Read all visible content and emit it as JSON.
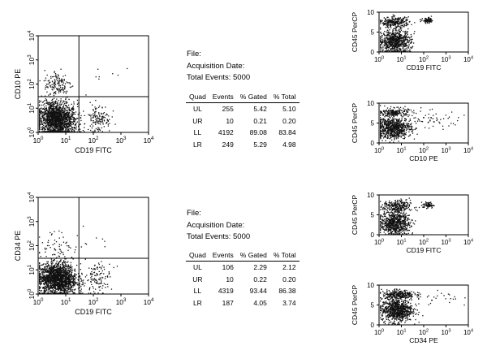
{
  "chart_data": [
    {
      "type": "scatter",
      "xlabel": "CD19 FITC",
      "ylabel": "CD10 PE",
      "xlim": [
        1,
        10000
      ],
      "ylim": [
        1,
        10000
      ],
      "xscale": "log",
      "yscale": "log",
      "quadrant_gates": {
        "x": 30,
        "y": 30
      },
      "ticks": [
        "10^0",
        "10^1",
        "10^2",
        "10^3",
        "10^4"
      ],
      "clusters": [
        {
          "label": "LL",
          "center": [
            5,
            3
          ],
          "spread": [
            0.35,
            0.35
          ],
          "points": 1300
        },
        {
          "label": "LL",
          "center": [
            3,
            6
          ],
          "spread": [
            0.25,
            0.3
          ],
          "points": 350
        },
        {
          "label": "UL",
          "center": [
            5,
            100
          ],
          "spread": [
            0.25,
            0.3
          ],
          "points": 150
        },
        {
          "label": "LR",
          "center": [
            150,
            4
          ],
          "spread": [
            0.22,
            0.3
          ],
          "points": 130
        },
        {
          "label": "UR",
          "center": [
            200,
            200
          ],
          "spread": [
            0.7,
            0.7
          ],
          "points": 8
        }
      ]
    },
    {
      "type": "scatter",
      "xlabel": "CD19 FITC",
      "ylabel": "CD34 PE",
      "xlim": [
        1,
        10000
      ],
      "ylim": [
        1,
        10000
      ],
      "xscale": "log",
      "yscale": "log",
      "quadrant_gates": {
        "x": 30,
        "y": 30
      },
      "ticks": [
        "10^0",
        "10^1",
        "10^2",
        "10^3",
        "10^4"
      ],
      "clusters": [
        {
          "label": "LL",
          "center": [
            5,
            4
          ],
          "spread": [
            0.35,
            0.32
          ],
          "points": 1400
        },
        {
          "label": "LL",
          "center": [
            4,
            7
          ],
          "spread": [
            0.28,
            0.25
          ],
          "points": 300
        },
        {
          "label": "UL",
          "center": [
            6,
            90
          ],
          "spread": [
            0.4,
            0.35
          ],
          "points": 70
        },
        {
          "label": "LR",
          "center": [
            150,
            5
          ],
          "spread": [
            0.22,
            0.3
          ],
          "points": 110
        },
        {
          "label": "UR",
          "center": [
            150,
            150
          ],
          "spread": [
            0.6,
            0.6
          ],
          "points": 8
        }
      ]
    },
    {
      "type": "scatter",
      "xlabel": "CD19 FITC",
      "ylabel": "CD45 PerCP",
      "xlim": [
        1,
        10000
      ],
      "ylim": [
        1,
        10
      ],
      "xscale": "log",
      "x_ticks": [
        "10^0",
        "10^1",
        "10^2",
        "10^3",
        "10^4"
      ],
      "y_ticks": [
        "0",
        "5",
        "10"
      ],
      "clusters": [
        {
          "center": [
            5,
            3.5
          ],
          "spread": [
            0.35,
            1.3
          ],
          "points": 700
        },
        {
          "center": [
            5,
            7.8
          ],
          "spread": [
            0.32,
            0.6
          ],
          "points": 250
        },
        {
          "center": [
            150,
            8.2
          ],
          "spread": [
            0.12,
            0.3
          ],
          "points": 80
        }
      ]
    },
    {
      "type": "scatter",
      "xlabel": "CD10 PE",
      "ylabel": "CD45 PerCP",
      "xlim": [
        1,
        10000
      ],
      "ylim": [
        1,
        10
      ],
      "xscale": "log",
      "x_ticks": [
        "10^0",
        "10^1",
        "10^2",
        "10^3",
        "10^4"
      ],
      "y_ticks": [
        "0",
        "5",
        "10"
      ],
      "clusters": [
        {
          "center": [
            4,
            4.5
          ],
          "spread": [
            0.4,
            1.2
          ],
          "points": 750
        },
        {
          "center": [
            5,
            8.0
          ],
          "spread": [
            0.3,
            0.5
          ],
          "points": 200
        },
        {
          "center": [
            150,
            6.5
          ],
          "spread": [
            0.8,
            1.0
          ],
          "points": 60
        }
      ]
    },
    {
      "type": "scatter",
      "xlabel": "CD19 FITC",
      "ylabel": "CD45 PerCP",
      "xlim": [
        1,
        10000
      ],
      "ylim": [
        1,
        10
      ],
      "xscale": "log",
      "x_ticks": [
        "10^0",
        "10^1",
        "10^2",
        "10^3",
        "10^4"
      ],
      "y_ticks": [
        "0",
        "5",
        "10"
      ],
      "clusters": [
        {
          "center": [
            5,
            3.8
          ],
          "spread": [
            0.33,
            1.3
          ],
          "points": 700
        },
        {
          "center": [
            6,
            7.5
          ],
          "spread": [
            0.3,
            0.7
          ],
          "points": 250
        },
        {
          "center": [
            150,
            7.8
          ],
          "spread": [
            0.12,
            0.35
          ],
          "points": 70
        }
      ]
    },
    {
      "type": "scatter",
      "xlabel": "CD34 PE",
      "ylabel": "CD45 PerCP",
      "xlim": [
        1,
        10000
      ],
      "ylim": [
        1,
        10
      ],
      "xscale": "log",
      "x_ticks": [
        "10^0",
        "10^1",
        "10^2",
        "10^3",
        "10^4"
      ],
      "y_ticks": [
        "0",
        "5",
        "10"
      ],
      "clusters": [
        {
          "center": [
            6,
            4.5
          ],
          "spread": [
            0.35,
            1.3
          ],
          "points": 800
        },
        {
          "center": [
            7,
            8.0
          ],
          "spread": [
            0.35,
            0.5
          ],
          "points": 250
        },
        {
          "center": [
            150,
            7.0
          ],
          "spread": [
            0.7,
            1.0
          ],
          "points": 40
        }
      ]
    }
  ],
  "panels": [
    {
      "file_label": "File:",
      "acquisition_label": "Acquisition Date:",
      "total_events_label": "Total Events: 5000",
      "table": {
        "headers": [
          "Quad",
          "Events",
          "% Gated",
          "% Total"
        ],
        "rows": [
          [
            "UL",
            "255",
            "5.42",
            "5.10"
          ],
          [
            "UR",
            "10",
            "0.21",
            "0.20"
          ],
          [
            "LL",
            "4192",
            "89.08",
            "83.84"
          ],
          [
            "LR",
            "249",
            "5.29",
            "4.98"
          ]
        ]
      }
    },
    {
      "file_label": "File:",
      "acquisition_label": "Acquisition Date:",
      "total_events_label": "Total Events: 5000",
      "table": {
        "headers": [
          "Quad",
          "Events",
          "% Gated",
          "% Total"
        ],
        "rows": [
          [
            "UL",
            "106",
            "2.29",
            "2.12"
          ],
          [
            "UR",
            "10",
            "0.22",
            "0.20"
          ],
          [
            "LL",
            "4319",
            "93.44",
            "86.38"
          ],
          [
            "LR",
            "187",
            "4.05",
            "3.74"
          ]
        ]
      }
    }
  ]
}
